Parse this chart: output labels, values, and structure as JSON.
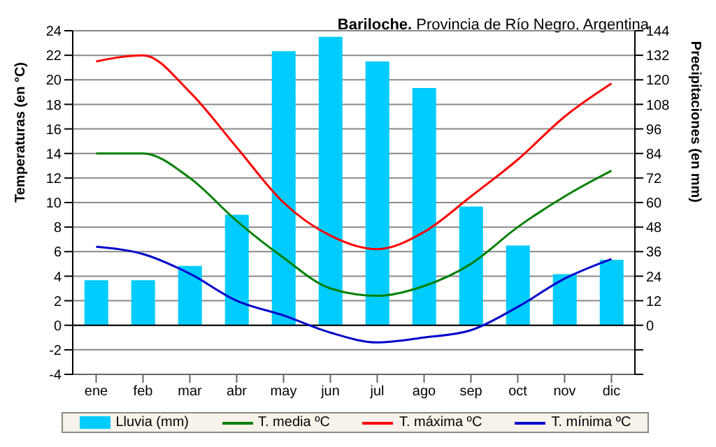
{
  "chart_data": {
    "type": "bar",
    "title": "Bariloche.",
    "subtitle": "Provincia de Río Negro, Argentina",
    "ylabel": "Temperaturas (en °C)",
    "y2label": "Precipitaciones (en mm)",
    "categories": [
      "ene",
      "feb",
      "mar",
      "abr",
      "may",
      "jun",
      "jul",
      "ago",
      "sep",
      "oct",
      "nov",
      "dic"
    ],
    "series": [
      {
        "name": "Lluvia (mm)",
        "axis": "y2",
        "color": "#00ccff",
        "values": [
          22,
          22,
          29,
          54,
          134,
          141,
          129,
          116,
          58,
          39,
          25,
          32
        ]
      },
      {
        "name": "T. media ºC",
        "type": "line",
        "color": "#008000",
        "values": [
          14,
          14,
          12,
          8.5,
          5.5,
          3,
          2.4,
          3.2,
          5,
          8,
          10.5,
          12.6
        ]
      },
      {
        "name": "T. máxima ºC",
        "type": "line",
        "color": "#ff0000",
        "values": [
          21.5,
          22,
          19,
          14.5,
          10,
          7.3,
          6.2,
          7.6,
          10.5,
          13.5,
          17,
          19.7
        ]
      },
      {
        "name": "T. mínima ºC",
        "type": "line",
        "color": "#0000cc",
        "values": [
          6.4,
          5.8,
          4.2,
          2,
          0.8,
          -0.6,
          -1.4,
          -1,
          -0.4,
          1.5,
          3.8,
          5.4
        ]
      }
    ],
    "ylim": [
      -4,
      24
    ],
    "yticks": [
      -4,
      -2,
      0,
      2,
      4,
      6,
      8,
      10,
      12,
      14,
      16,
      18,
      20,
      22,
      24
    ],
    "y2lim": [
      -24,
      144
    ],
    "y2ticks": [
      {
        "value": -24,
        "label": null
      },
      {
        "value": -12,
        "label": null
      },
      0,
      12,
      24,
      36,
      48,
      60,
      72,
      84,
      96,
      108,
      120,
      132,
      144
    ],
    "grid": "y",
    "legend": "bottom",
    "marker": "none",
    "line_style": "solid"
  }
}
